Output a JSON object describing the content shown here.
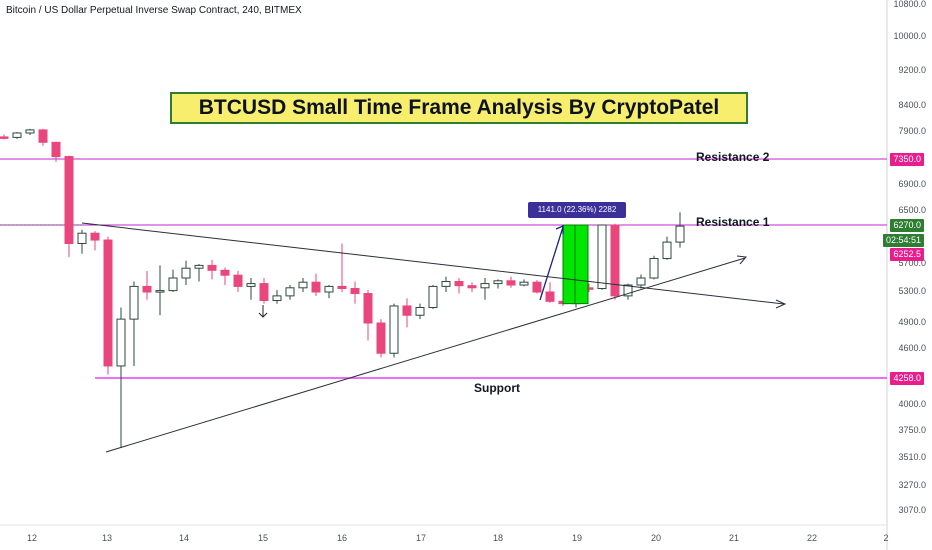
{
  "symbol_line": "Bitcoin / US Dollar Perpetual Inverse Swap Contract, 240, BITMEX",
  "title_banner": "BTCUSD Small Time Frame Analysis By CryptoPatel",
  "annotations": {
    "resistance_2": "Resistance 2",
    "resistance_1": "Resistance 1",
    "support": "Support",
    "measure": "1141.0 (22.36%) 2282"
  },
  "price_axis": {
    "ticks": [
      "10800.0",
      "10000.0",
      "9200.0",
      "8400.0",
      "7900.0",
      "6900.0",
      "6500.0",
      "5700.0",
      "5300.0",
      "4900.0",
      "4600.0",
      "4000.0",
      "3750.0",
      "3510.0",
      "3270.0",
      "3070.0"
    ],
    "badges": [
      {
        "text": "7350.0",
        "color": "#e91e8c"
      },
      {
        "text": "6270.0",
        "color": "#2e7d32"
      },
      {
        "text": "02:54:51",
        "color": "#2e7d32"
      },
      {
        "text": "6252.5",
        "color": "#e91e8c"
      },
      {
        "text": "4258.0",
        "color": "#e91e8c"
      }
    ]
  },
  "date_axis": {
    "ticks": [
      "12",
      "13",
      "14",
      "15",
      "16",
      "17",
      "18",
      "19",
      "20",
      "21",
      "22",
      "2"
    ]
  },
  "colors": {
    "up_candle": "#26a69a",
    "down_candle": "#e8467c",
    "resistance_line": "#c026d3",
    "support_line": "#e040fb",
    "highlight_box": "#00e600",
    "trendline": "#2a2e39",
    "measure_arrow": "#1a237e"
  },
  "chart_data": {
    "type": "candlestick",
    "title": "BTCUSD Small Time Frame Analysis By CryptoPatel",
    "timeframe": "240",
    "exchange": "BITMEX",
    "x_categories": [
      "12",
      "13",
      "14",
      "15",
      "16",
      "17",
      "18",
      "19",
      "20",
      "21",
      "22"
    ],
    "levels": {
      "resistance_2": 7350.0,
      "resistance_1": 6270.0,
      "support": 4258.0,
      "last_price": 6252.5
    },
    "ohlc": [
      {
        "o": 7800,
        "h": 7850,
        "l": 7750,
        "c": 7790
      },
      {
        "o": 7790,
        "h": 7900,
        "l": 7760,
        "c": 7880
      },
      {
        "o": 7880,
        "h": 7960,
        "l": 7840,
        "c": 7940
      },
      {
        "o": 7940,
        "h": 7960,
        "l": 7620,
        "c": 7690
      },
      {
        "o": 7690,
        "h": 7700,
        "l": 7300,
        "c": 7400
      },
      {
        "o": 7400,
        "h": 7420,
        "l": 5800,
        "c": 6000
      },
      {
        "o": 6000,
        "h": 6200,
        "l": 5850,
        "c": 6150
      },
      {
        "o": 6150,
        "h": 6180,
        "l": 5900,
        "c": 6050
      },
      {
        "o": 6050,
        "h": 6100,
        "l": 4300,
        "c": 4400
      },
      {
        "o": 4400,
        "h": 5100,
        "l": 3600,
        "c": 4950
      },
      {
        "o": 4950,
        "h": 5450,
        "l": 4400,
        "c": 5380
      },
      {
        "o": 5380,
        "h": 5600,
        "l": 5200,
        "c": 5300
      },
      {
        "o": 5300,
        "h": 5680,
        "l": 5000,
        "c": 5320
      },
      {
        "o": 5320,
        "h": 5620,
        "l": 5300,
        "c": 5500
      },
      {
        "o": 5500,
        "h": 5750,
        "l": 5400,
        "c": 5640
      },
      {
        "o": 5640,
        "h": 5700,
        "l": 5450,
        "c": 5680
      },
      {
        "o": 5680,
        "h": 5760,
        "l": 5480,
        "c": 5610
      },
      {
        "o": 5610,
        "h": 5650,
        "l": 5400,
        "c": 5540
      },
      {
        "o": 5540,
        "h": 5600,
        "l": 5300,
        "c": 5380
      },
      {
        "o": 5380,
        "h": 5500,
        "l": 5200,
        "c": 5420
      },
      {
        "o": 5420,
        "h": 5500,
        "l": 5150,
        "c": 5190
      },
      {
        "o": 5190,
        "h": 5330,
        "l": 5150,
        "c": 5250
      },
      {
        "o": 5250,
        "h": 5400,
        "l": 5200,
        "c": 5360
      },
      {
        "o": 5360,
        "h": 5500,
        "l": 5300,
        "c": 5440
      },
      {
        "o": 5440,
        "h": 5560,
        "l": 5250,
        "c": 5300
      },
      {
        "o": 5300,
        "h": 5400,
        "l": 5220,
        "c": 5380
      },
      {
        "o": 5380,
        "h": 6000,
        "l": 5300,
        "c": 5350
      },
      {
        "o": 5350,
        "h": 5450,
        "l": 5150,
        "c": 5280
      },
      {
        "o": 5280,
        "h": 5330,
        "l": 4700,
        "c": 4900
      },
      {
        "o": 4900,
        "h": 4950,
        "l": 4500,
        "c": 4550
      },
      {
        "o": 4550,
        "h": 5150,
        "l": 4500,
        "c": 5120
      },
      {
        "o": 5120,
        "h": 5220,
        "l": 4850,
        "c": 5000
      },
      {
        "o": 5000,
        "h": 5150,
        "l": 4950,
        "c": 5100
      },
      {
        "o": 5100,
        "h": 5400,
        "l": 5080,
        "c": 5380
      },
      {
        "o": 5380,
        "h": 5520,
        "l": 5300,
        "c": 5450
      },
      {
        "o": 5450,
        "h": 5500,
        "l": 5280,
        "c": 5390
      },
      {
        "o": 5390,
        "h": 5440,
        "l": 5300,
        "c": 5360
      },
      {
        "o": 5360,
        "h": 5500,
        "l": 5200,
        "c": 5420
      },
      {
        "o": 5420,
        "h": 5480,
        "l": 5350,
        "c": 5460
      },
      {
        "o": 5460,
        "h": 5520,
        "l": 5360,
        "c": 5400
      },
      {
        "o": 5400,
        "h": 5480,
        "l": 5380,
        "c": 5440
      },
      {
        "o": 5440,
        "h": 5470,
        "l": 5280,
        "c": 5300
      },
      {
        "o": 5300,
        "h": 5440,
        "l": 5160,
        "c": 5180
      },
      {
        "o": 5180,
        "h": 5240,
        "l": 5120,
        "c": 5150
      },
      {
        "o": 5150,
        "h": 5390,
        "l": 5100,
        "c": 5360
      },
      {
        "o": 5360,
        "h": 5420,
        "l": 5300,
        "c": 5350
      },
      {
        "o": 5350,
        "h": 6280,
        "l": 5330,
        "c": 6270
      },
      {
        "o": 6270,
        "h": 6290,
        "l": 5200,
        "c": 5250
      },
      {
        "o": 5250,
        "h": 5420,
        "l": 5200,
        "c": 5400
      },
      {
        "o": 5400,
        "h": 5550,
        "l": 5350,
        "c": 5500
      },
      {
        "o": 5500,
        "h": 5820,
        "l": 5480,
        "c": 5780
      },
      {
        "o": 5780,
        "h": 6100,
        "l": 5760,
        "c": 6020
      },
      {
        "o": 6020,
        "h": 6480,
        "l": 5940,
        "c": 6253
      }
    ]
  }
}
